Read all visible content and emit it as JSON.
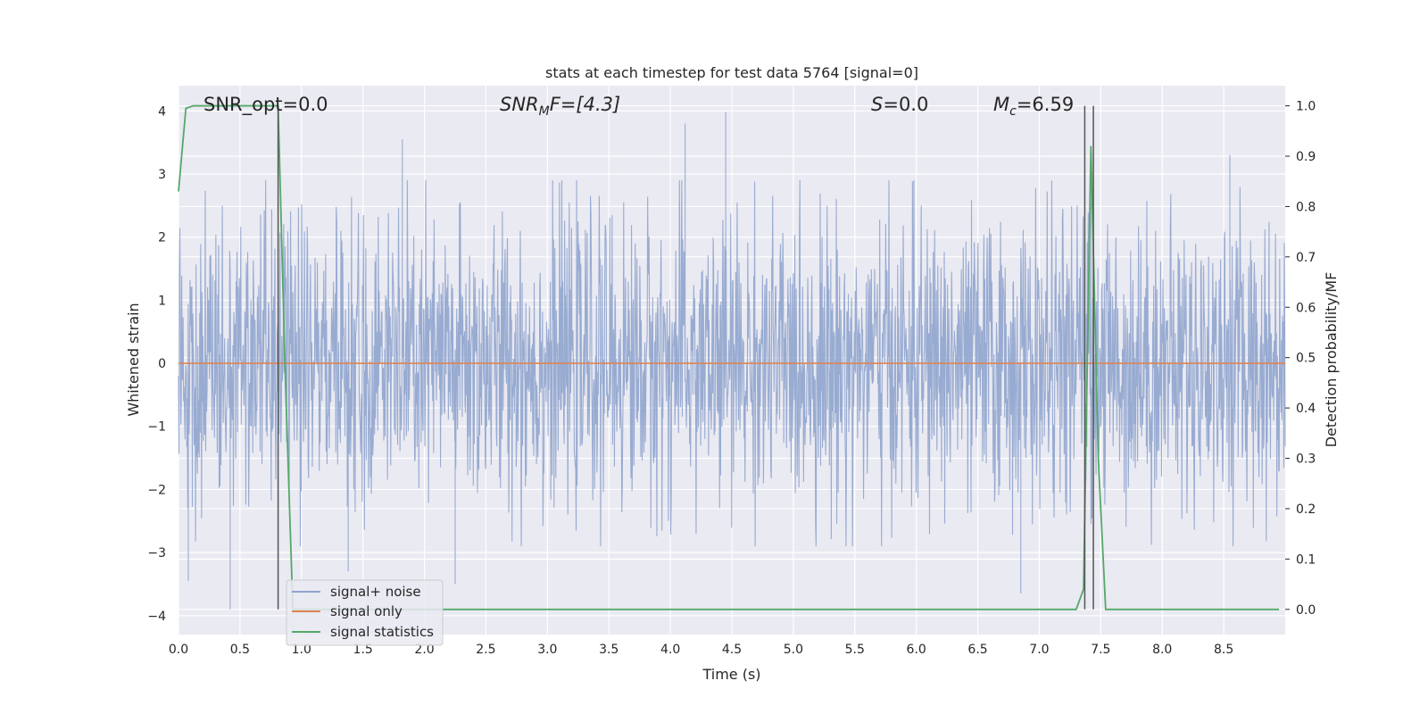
{
  "chart_data": {
    "type": "line",
    "title": "stats at each timestep for test data 5764 [signal=0]",
    "xlabel": "Time (s)",
    "ylabel_left": "Whitened strain",
    "ylabel_right": "Detection probability/MF",
    "xlim": [
      0.0,
      9.0
    ],
    "ylim_left": [
      -4.3,
      4.4
    ],
    "ylim_right": [
      -0.05,
      1.04
    ],
    "xticks": [
      "0.0",
      "0.5",
      "1.0",
      "1.5",
      "2.0",
      "2.5",
      "3.0",
      "3.5",
      "4.0",
      "4.5",
      "5.0",
      "5.5",
      "6.0",
      "6.5",
      "7.0",
      "7.5",
      "8.0",
      "8.5"
    ],
    "yticks_left": [
      "−4",
      "−3",
      "−2",
      "−1",
      "0",
      "1",
      "2",
      "3",
      "4"
    ],
    "yticks_right": [
      "0.0",
      "0.1",
      "0.2",
      "0.3",
      "0.4",
      "0.5",
      "0.6",
      "0.7",
      "0.8",
      "0.9",
      "1.0"
    ],
    "grid": true,
    "legend_placement": "lower-left",
    "annotations": {
      "snr_opt": "SNR_opt=0.0",
      "snr_mf_main": "SNR",
      "snr_mf_sub": "M",
      "snr_mf_tail": "F=[4.3]",
      "s_main": "S",
      "s_tail": "=0.0",
      "mc_main": "M",
      "mc_sub": "c",
      "mc_tail": "=6.59"
    },
    "series": [
      {
        "name": "signal+ noise",
        "color": "#8fa4cd",
        "axis": "left",
        "description_envelope": {
          "typical_abs": 1.5,
          "peaks": [
            {
              "x": 0.42,
              "y": -3.9
            },
            {
              "x": 0.08,
              "y": -3.45
            },
            {
              "x": 1.82,
              "y": 3.55
            },
            {
              "x": 4.45,
              "y": 3.98
            },
            {
              "x": 4.12,
              "y": 3.8
            },
            {
              "x": 6.85,
              "y": -3.65
            },
            {
              "x": 2.25,
              "y": -3.5
            },
            {
              "x": 1.38,
              "y": -3.3
            },
            {
              "x": 8.55,
              "y": 3.3
            },
            {
              "x": 7.42,
              "y": 3.1
            }
          ]
        }
      },
      {
        "name": "signal only",
        "color": "#dd8452",
        "axis": "left",
        "x": [
          0.0,
          9.0
        ],
        "y": [
          0.0,
          0.0
        ]
      },
      {
        "name": "signal statistics",
        "color": "#55a868",
        "axis": "right",
        "x": [
          0.0,
          0.06,
          0.12,
          0.18,
          0.75,
          0.81,
          0.87,
          0.93,
          1.0,
          2.0,
          3.0,
          4.0,
          5.0,
          6.0,
          7.0,
          7.3,
          7.36,
          7.42,
          7.48,
          7.54,
          7.6,
          8.0,
          8.5,
          8.95
        ],
        "y": [
          0.83,
          0.995,
          1.0,
          1.0,
          1.0,
          1.0,
          0.45,
          0.0,
          0.0,
          0.0,
          0.0,
          0.0,
          0.0,
          0.0,
          0.0,
          0.0,
          0.04,
          0.92,
          0.3,
          0.0,
          0.0,
          0.0,
          0.0,
          0.0
        ]
      }
    ],
    "vlines": [
      {
        "x": 0.81,
        "ymin": 0.0,
        "ymax": 1.0,
        "color": "#555555"
      },
      {
        "x": 7.37,
        "ymin": 0.0,
        "ymax": 1.0,
        "color": "#555555"
      },
      {
        "x": 7.44,
        "ymin": 0.0,
        "ymax": 1.0,
        "color": "#555555"
      }
    ],
    "colors": {
      "plot_bg": "#eaeaf2",
      "grid": "#ffffff",
      "text": "#262626"
    }
  }
}
